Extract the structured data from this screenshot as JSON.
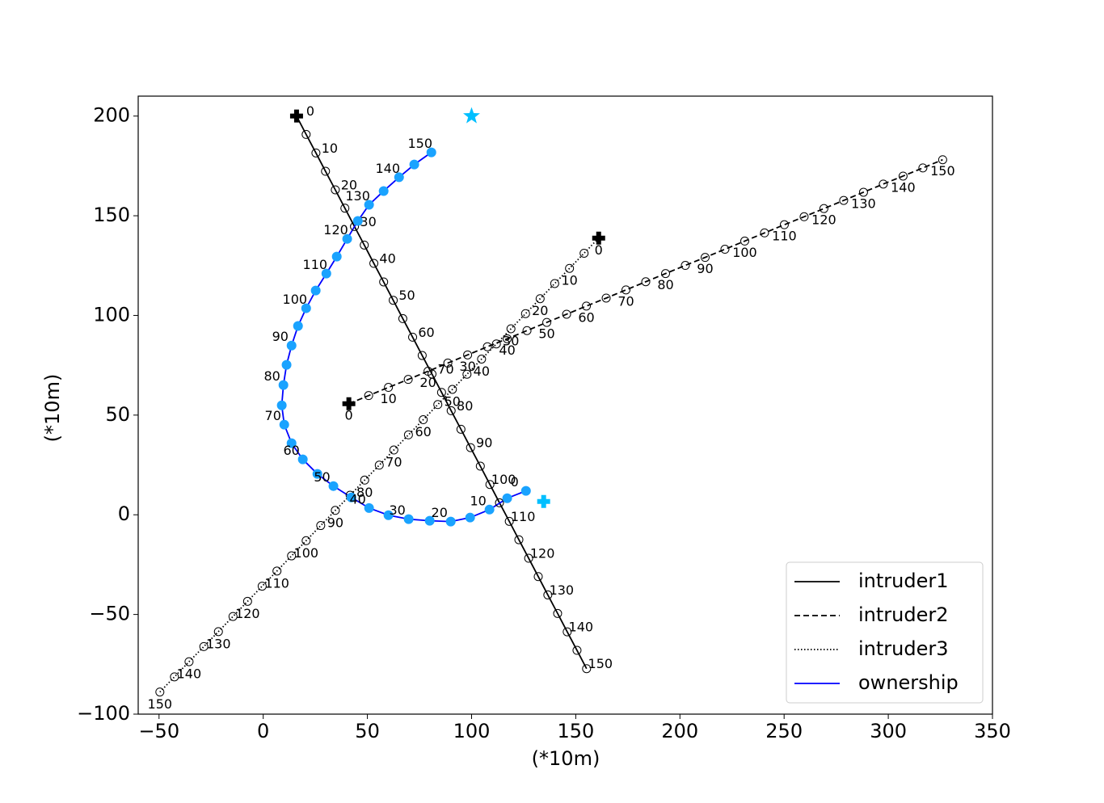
{
  "chart_data": {
    "type": "trajectory",
    "xlabel": "(*10m)",
    "ylabel": "(*10m)",
    "xlim": [
      -60,
      350
    ],
    "ylim": [
      -100,
      210
    ],
    "xticks": [
      {
        "value": -50,
        "label": "−50"
      },
      0,
      50,
      100,
      150,
      200,
      250,
      300,
      350
    ],
    "yticks": [
      {
        "value": -100,
        "label": "−100"
      },
      {
        "value": -50,
        "label": "−50"
      },
      0,
      50,
      100,
      150,
      200
    ],
    "legend": "lower right",
    "series": [
      {
        "name": "intruder1",
        "color": "#000000",
        "linestyle": "solid",
        "marker_color": "#000000",
        "marker_filled": false,
        "x": [
          16,
          20.6,
          25.3,
          29.9,
          34.6,
          39.2,
          43.8,
          48.5,
          53.1,
          57.8,
          62.4,
          67,
          71.7,
          76.3,
          81,
          85.6,
          90.2,
          94.9,
          99.5,
          104.2,
          108.8,
          113.4,
          118.1,
          122.7,
          127.4,
          132,
          136.6,
          141.3,
          145.9,
          150.6,
          155.2
        ],
        "y": [
          200,
          190.8,
          181.5,
          172.3,
          163,
          153.8,
          144.6,
          135.3,
          126.1,
          116.8,
          107.6,
          98.4,
          89.1,
          79.9,
          70.6,
          61.4,
          52.2,
          42.9,
          33.7,
          24.4,
          15.2,
          6,
          -3.3,
          -12.5,
          -21.8,
          -31,
          -40.2,
          -49.5,
          -58.7,
          -68,
          -77.2
        ],
        "point_labels": [
          0,
          null,
          10,
          null,
          20,
          null,
          30,
          null,
          40,
          null,
          50,
          null,
          60,
          null,
          70,
          null,
          80,
          null,
          90,
          null,
          100,
          null,
          110,
          null,
          120,
          null,
          130,
          null,
          140,
          null,
          150
        ]
      },
      {
        "name": "intruder2",
        "color": "#000000",
        "linestyle": "dashed",
        "marker_color": "#000000",
        "marker_filled": false,
        "x": [
          41.1,
          50.6,
          60.1,
          69.6,
          79.1,
          88.6,
          98.1,
          107.6,
          117.1,
          126.6,
          136.1,
          145.6,
          155.1,
          164.6,
          174.1,
          183.6,
          193.1,
          202.6,
          212.1,
          221.6,
          231.1,
          240.6,
          250.1,
          259.6,
          269.1,
          278.6,
          288.1,
          297.6,
          307.1,
          316.6,
          326.1
        ],
        "y": [
          55.7,
          59.8,
          63.9,
          67.9,
          72,
          76.1,
          80.2,
          84.3,
          88.3,
          92.4,
          96.5,
          100.6,
          104.7,
          108.7,
          112.8,
          116.9,
          121,
          125.1,
          129.1,
          133.2,
          137.3,
          141.4,
          145.5,
          149.5,
          153.6,
          157.7,
          161.8,
          165.9,
          169.9,
          174,
          178.1
        ],
        "point_labels": [
          0,
          null,
          10,
          null,
          20,
          null,
          30,
          null,
          40,
          null,
          50,
          null,
          60,
          null,
          70,
          null,
          80,
          null,
          90,
          null,
          100,
          null,
          110,
          null,
          120,
          null,
          130,
          null,
          140,
          null,
          150
        ]
      },
      {
        "name": "intruder3",
        "color": "#000000",
        "linestyle": "dotted",
        "marker_color": "#000000",
        "marker_filled": false,
        "x": [
          161,
          154,
          147,
          139.9,
          132.9,
          125.9,
          118.9,
          111.9,
          104.8,
          97.8,
          90.8,
          83.8,
          76.8,
          69.7,
          62.7,
          55.7,
          48.7,
          41.7,
          34.6,
          27.6,
          20.6,
          13.6,
          6.6,
          -0.5,
          -7.5,
          -14.5,
          -21.5,
          -28.5,
          -35.6,
          -42.6,
          -49.6
        ],
        "y": [
          138.8,
          131.2,
          123.6,
          116,
          108.4,
          100.9,
          93.3,
          85.7,
          78.1,
          70.5,
          62.9,
          55.3,
          47.7,
          40.1,
          32.5,
          24.9,
          17.4,
          9.8,
          2.2,
          -5.4,
          -13,
          -20.6,
          -28.2,
          -35.8,
          -43.4,
          -51,
          -58.6,
          -66.1,
          -73.7,
          -81.3,
          -88.9
        ],
        "point_labels": [
          0,
          null,
          10,
          null,
          20,
          null,
          30,
          null,
          40,
          null,
          50,
          null,
          60,
          null,
          70,
          null,
          80,
          null,
          90,
          null,
          100,
          null,
          110,
          null,
          120,
          null,
          130,
          null,
          140,
          null,
          150
        ]
      },
      {
        "name": "ownership",
        "color": "#0000ff",
        "linestyle": "solid",
        "marker_color": "#1aa3ff",
        "marker_filled": true,
        "x": [
          126.1,
          117.1,
          108.6,
          99.3,
          90,
          79.9,
          69.8,
          60.1,
          50.8,
          42.3,
          33.7,
          26,
          19,
          13.6,
          10.1,
          8.9,
          9.7,
          11.2,
          13.6,
          16.7,
          20.6,
          25.2,
          30.3,
          35.3,
          40.3,
          45.4,
          50.8,
          57.8,
          65.2,
          72.5,
          80.7
        ],
        "y": [
          12,
          8.3,
          2.6,
          -1.4,
          -3.4,
          -3,
          -2.2,
          -0.2,
          3.4,
          8.7,
          14.4,
          20.5,
          27.8,
          35.9,
          45.2,
          54.9,
          65.1,
          75.2,
          84.9,
          94.7,
          103.6,
          112.5,
          121,
          129.5,
          138.4,
          147.4,
          155.5,
          162.4,
          169.3,
          175.7,
          181.8
        ],
        "point_labels": [
          0,
          null,
          10,
          null,
          20,
          null,
          30,
          null,
          40,
          null,
          50,
          null,
          60,
          null,
          70,
          null,
          80,
          null,
          90,
          null,
          100,
          null,
          110,
          null,
          120,
          null,
          130,
          null,
          140,
          null,
          150
        ],
        "start": [
          134.6,
          6.7
        ],
        "goal": [
          100,
          200
        ],
        "start_goal_color": "#00bfff"
      }
    ]
  }
}
